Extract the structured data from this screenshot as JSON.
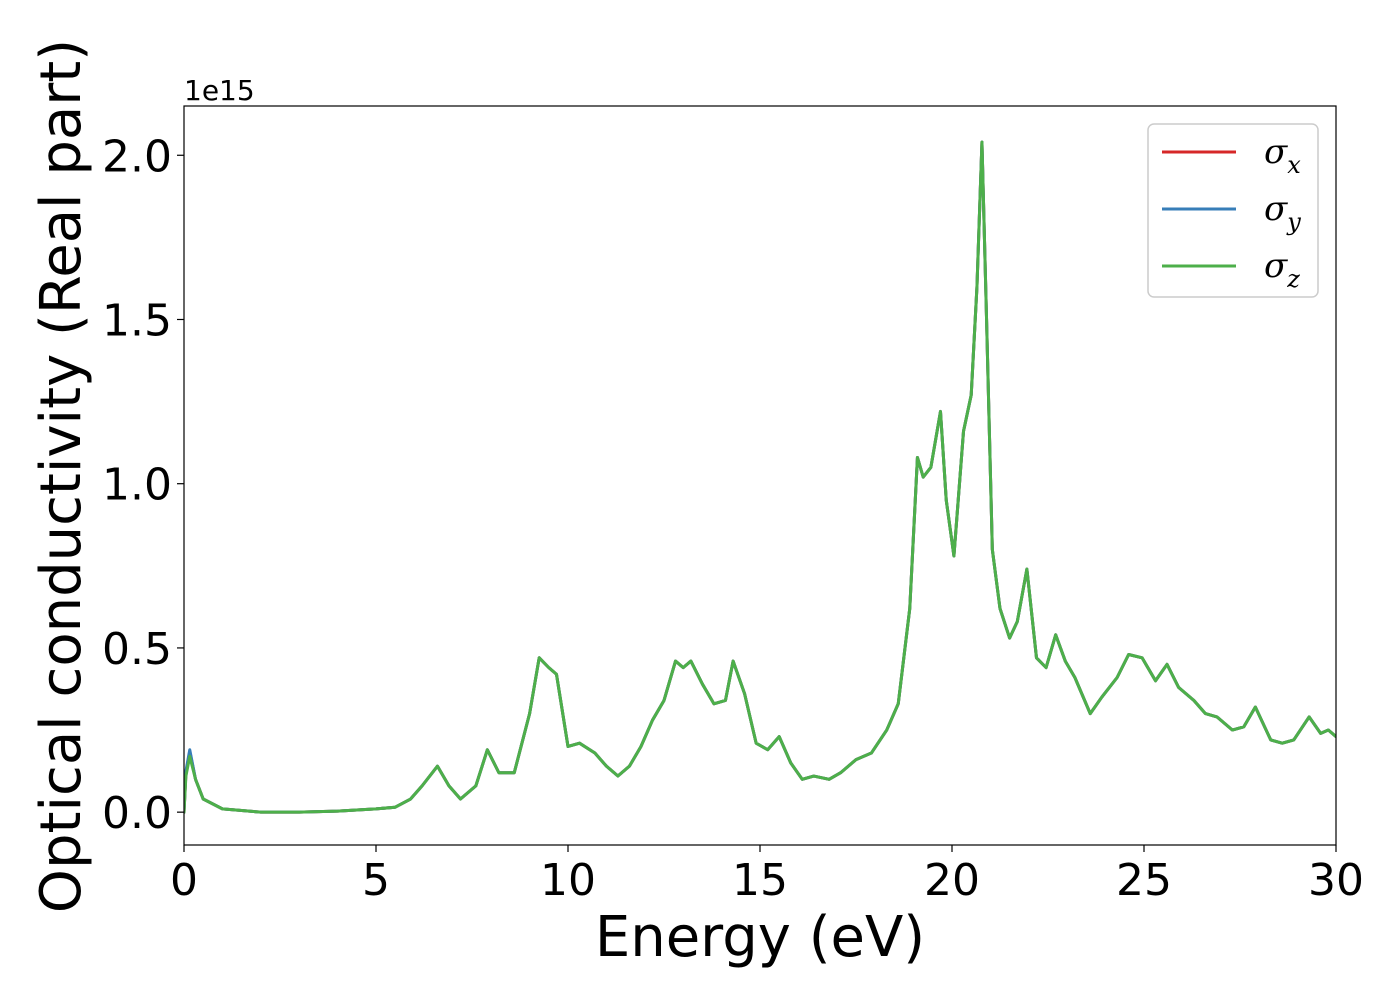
{
  "chart_data": {
    "type": "line",
    "xlabel": "Energy (eV)",
    "ylabel": "Optical conductivity (Real part)",
    "y_offset_text": "1e15",
    "xlim": [
      0,
      30
    ],
    "ylim": [
      -0.1,
      2.15
    ],
    "x_ticks": [
      0,
      5,
      10,
      15,
      20,
      25,
      30
    ],
    "x_tick_labels": [
      "0",
      "5",
      "10",
      "15",
      "20",
      "25",
      "30"
    ],
    "y_ticks": [
      0.0,
      0.5,
      1.0,
      1.5,
      2.0
    ],
    "y_tick_labels": [
      "0.0",
      "0.5",
      "1.0",
      "1.5",
      "2.0"
    ],
    "grid": false,
    "legend_position": "top-right",
    "series": [
      {
        "name": "σ",
        "subscript": "x",
        "color": "#d62728",
        "x": [
          0,
          0.05,
          0.15,
          0.3,
          0.5,
          1.0,
          2,
          3,
          4,
          5,
          5.5,
          5.9,
          6.2,
          6.6,
          6.9,
          7.2,
          7.6,
          7.9,
          8.2,
          8.6,
          9.0,
          9.25,
          9.5,
          9.7,
          10.0,
          10.3,
          10.7,
          11.0,
          11.3,
          11.6,
          11.9,
          12.2,
          12.5,
          12.8,
          13.0,
          13.2,
          13.5,
          13.8,
          14.1,
          14.3,
          14.6,
          14.9,
          15.2,
          15.5,
          15.8,
          16.1,
          16.4,
          16.8,
          17.1,
          17.5,
          17.9,
          18.3,
          18.6,
          18.9,
          19.1,
          19.25,
          19.45,
          19.7,
          19.85,
          20.05,
          20.3,
          20.5,
          20.65,
          20.78,
          20.9,
          21.05,
          21.25,
          21.5,
          21.7,
          21.95,
          22.2,
          22.45,
          22.7,
          22.95,
          23.2,
          23.6,
          23.9,
          24.3,
          24.6,
          24.95,
          25.3,
          25.6,
          25.9,
          26.3,
          26.6,
          26.9,
          27.3,
          27.6,
          27.9,
          28.3,
          28.6,
          28.9,
          29.3,
          29.6,
          29.8,
          30
        ],
        "values": [
          0,
          0.12,
          0.185,
          0.1,
          0.04,
          0.01,
          0.0,
          0.0,
          0.003,
          0.01,
          0.015,
          0.04,
          0.08,
          0.14,
          0.08,
          0.04,
          0.08,
          0.19,
          0.12,
          0.12,
          0.3,
          0.47,
          0.44,
          0.42,
          0.2,
          0.21,
          0.18,
          0.14,
          0.11,
          0.14,
          0.2,
          0.28,
          0.34,
          0.46,
          0.44,
          0.46,
          0.39,
          0.33,
          0.34,
          0.46,
          0.36,
          0.21,
          0.19,
          0.23,
          0.15,
          0.1,
          0.11,
          0.1,
          0.12,
          0.16,
          0.18,
          0.25,
          0.33,
          0.62,
          1.08,
          1.02,
          1.05,
          1.22,
          0.95,
          0.78,
          1.16,
          1.27,
          1.6,
          2.04,
          1.5,
          0.8,
          0.62,
          0.53,
          0.58,
          0.74,
          0.47,
          0.44,
          0.54,
          0.46,
          0.41,
          0.3,
          0.35,
          0.41,
          0.48,
          0.47,
          0.4,
          0.45,
          0.38,
          0.34,
          0.3,
          0.29,
          0.25,
          0.26,
          0.32,
          0.22,
          0.21,
          0.22,
          0.29,
          0.24,
          0.25,
          0.23
        ]
      },
      {
        "name": "σ",
        "subscript": "y",
        "color": "#377eb8",
        "x": [
          0,
          0.05,
          0.15,
          0.3,
          0.5,
          1.0,
          2,
          3,
          4,
          5,
          5.5,
          5.9,
          6.2,
          6.6,
          6.9,
          7.2,
          7.6,
          7.9,
          8.2,
          8.6,
          9.0,
          9.25,
          9.5,
          9.7,
          10.0,
          10.3,
          10.7,
          11.0,
          11.3,
          11.6,
          11.9,
          12.2,
          12.5,
          12.8,
          13.0,
          13.2,
          13.5,
          13.8,
          14.1,
          14.3,
          14.6,
          14.9,
          15.2,
          15.5,
          15.8,
          16.1,
          16.4,
          16.8,
          17.1,
          17.5,
          17.9,
          18.3,
          18.6,
          18.9,
          19.1,
          19.25,
          19.45,
          19.7,
          19.85,
          20.05,
          20.3,
          20.5,
          20.65,
          20.78,
          20.9,
          21.05,
          21.25,
          21.5,
          21.7,
          21.95,
          22.2,
          22.45,
          22.7,
          22.95,
          23.2,
          23.6,
          23.9,
          24.3,
          24.6,
          24.95,
          25.3,
          25.6,
          25.9,
          26.3,
          26.6,
          26.9,
          27.3,
          27.6,
          27.9,
          28.3,
          28.6,
          28.9,
          29.3,
          29.6,
          29.8,
          30
        ],
        "values": [
          0,
          0.125,
          0.19,
          0.1,
          0.04,
          0.01,
          0.0,
          0.0,
          0.003,
          0.01,
          0.015,
          0.04,
          0.08,
          0.14,
          0.08,
          0.04,
          0.08,
          0.19,
          0.12,
          0.12,
          0.3,
          0.47,
          0.44,
          0.42,
          0.2,
          0.21,
          0.18,
          0.14,
          0.11,
          0.14,
          0.2,
          0.28,
          0.34,
          0.46,
          0.44,
          0.46,
          0.39,
          0.33,
          0.34,
          0.46,
          0.36,
          0.21,
          0.19,
          0.23,
          0.15,
          0.1,
          0.11,
          0.1,
          0.12,
          0.16,
          0.18,
          0.25,
          0.33,
          0.62,
          1.08,
          1.02,
          1.05,
          1.22,
          0.95,
          0.78,
          1.16,
          1.27,
          1.6,
          2.04,
          1.5,
          0.8,
          0.62,
          0.53,
          0.58,
          0.74,
          0.47,
          0.44,
          0.54,
          0.46,
          0.41,
          0.3,
          0.35,
          0.41,
          0.48,
          0.47,
          0.4,
          0.45,
          0.38,
          0.34,
          0.3,
          0.29,
          0.25,
          0.26,
          0.32,
          0.22,
          0.21,
          0.22,
          0.29,
          0.24,
          0.25,
          0.23
        ]
      },
      {
        "name": "σ",
        "subscript": "z",
        "color": "#4daf4a",
        "x": [
          0,
          0.05,
          0.15,
          0.3,
          0.5,
          1.0,
          2,
          3,
          4,
          5,
          5.5,
          5.9,
          6.2,
          6.6,
          6.9,
          7.2,
          7.6,
          7.9,
          8.2,
          8.6,
          9.0,
          9.25,
          9.5,
          9.7,
          10.0,
          10.3,
          10.7,
          11.0,
          11.3,
          11.6,
          11.9,
          12.2,
          12.5,
          12.8,
          13.0,
          13.2,
          13.5,
          13.8,
          14.1,
          14.3,
          14.6,
          14.9,
          15.2,
          15.5,
          15.8,
          16.1,
          16.4,
          16.8,
          17.1,
          17.5,
          17.9,
          18.3,
          18.6,
          18.9,
          19.1,
          19.25,
          19.45,
          19.7,
          19.85,
          20.05,
          20.3,
          20.5,
          20.65,
          20.78,
          20.9,
          21.05,
          21.25,
          21.5,
          21.7,
          21.95,
          22.2,
          22.45,
          22.7,
          22.95,
          23.2,
          23.6,
          23.9,
          24.3,
          24.6,
          24.95,
          25.3,
          25.6,
          25.9,
          26.3,
          26.6,
          26.9,
          27.3,
          27.6,
          27.9,
          28.3,
          28.6,
          28.9,
          29.3,
          29.6,
          29.8,
          30
        ],
        "values": [
          0,
          0.11,
          0.17,
          0.1,
          0.04,
          0.01,
          0.0,
          0.0,
          0.003,
          0.01,
          0.015,
          0.04,
          0.08,
          0.14,
          0.08,
          0.04,
          0.08,
          0.19,
          0.12,
          0.12,
          0.3,
          0.47,
          0.44,
          0.42,
          0.2,
          0.21,
          0.18,
          0.14,
          0.11,
          0.14,
          0.2,
          0.28,
          0.34,
          0.46,
          0.44,
          0.46,
          0.39,
          0.33,
          0.34,
          0.46,
          0.36,
          0.21,
          0.19,
          0.23,
          0.15,
          0.1,
          0.11,
          0.1,
          0.12,
          0.16,
          0.18,
          0.25,
          0.33,
          0.62,
          1.08,
          1.02,
          1.05,
          1.22,
          0.95,
          0.78,
          1.16,
          1.27,
          1.6,
          2.04,
          1.5,
          0.8,
          0.62,
          0.53,
          0.58,
          0.74,
          0.47,
          0.44,
          0.54,
          0.46,
          0.41,
          0.3,
          0.35,
          0.41,
          0.48,
          0.47,
          0.4,
          0.45,
          0.38,
          0.34,
          0.3,
          0.29,
          0.25,
          0.26,
          0.32,
          0.22,
          0.21,
          0.22,
          0.29,
          0.24,
          0.25,
          0.23
        ]
      }
    ]
  }
}
